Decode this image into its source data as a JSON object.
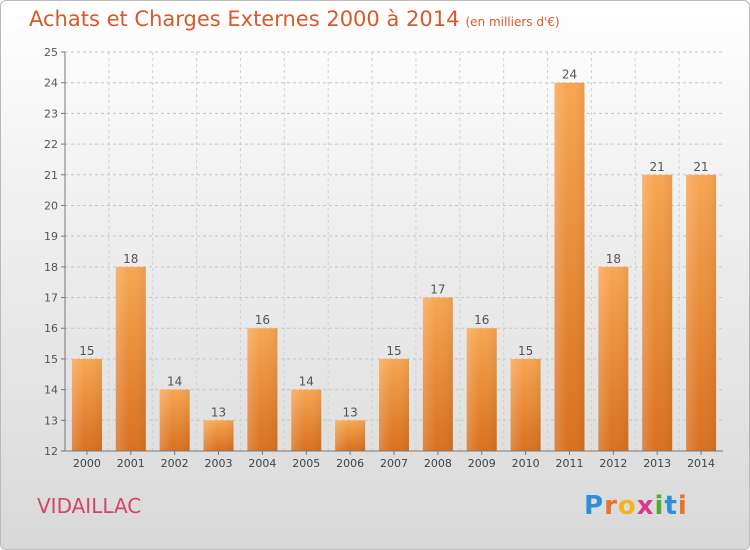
{
  "title": "Achats et Charges Externes 2000 à 2014",
  "subtitle": "(en milliers d'€)",
  "commune": "VIDAILLAC",
  "logo": {
    "letters": [
      "P",
      "r",
      "o",
      "x",
      "i",
      "t",
      "i"
    ],
    "colors": [
      "#2d8fd6",
      "#e8732a",
      "#f2b51d",
      "#d83a8f",
      "#55a838",
      "#2d8fd6",
      "#e8732a"
    ]
  },
  "colors": {
    "bar_top": "#f7a652",
    "bar_bottom": "#d8701f",
    "title": "#d85a2a",
    "commune": "#d7436a"
  },
  "chart_data": {
    "type": "bar",
    "title": "Achats et Charges Externes 2000 à 2014",
    "subtitle": "(en milliers d'€)",
    "categories": [
      "2000",
      "2001",
      "2002",
      "2003",
      "2004",
      "2005",
      "2006",
      "2007",
      "2008",
      "2009",
      "2010",
      "2011",
      "2012",
      "2013",
      "2014"
    ],
    "values": [
      15,
      18,
      14,
      13,
      16,
      14,
      13,
      15,
      17,
      16,
      15,
      24,
      18,
      21,
      21
    ],
    "ylim": [
      12,
      25
    ],
    "yticks": [
      12,
      13,
      14,
      15,
      16,
      17,
      18,
      19,
      20,
      21,
      22,
      23,
      24,
      25
    ],
    "grid": true,
    "legend": "none"
  }
}
